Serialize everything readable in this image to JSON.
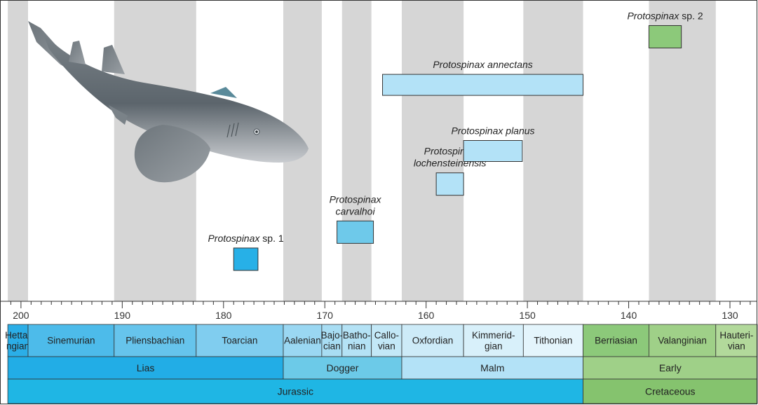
{
  "colors": {
    "band_gray": "#d6d6d6",
    "frame": "#333333",
    "jurassic": "#1fb6e4",
    "lias": "#22ade6",
    "dogger": "#6ccae8",
    "malm": "#b3e2f7",
    "cretaceous": "#85c36e",
    "early": "#9fd088",
    "sp1_fill": "#27b0e7",
    "carvalhoi_fill": "#6ec9ea",
    "malm_taxa_fill": "#b3e2f7",
    "sp2_fill": "#8cc97a",
    "shark": "icon: guitarfish-like shark (Protospinax) silhouette"
  },
  "chart_data": {
    "type": "range-chart",
    "x_axis": {
      "min": 202.0,
      "max": 127.3,
      "reversed": true,
      "unit": "Ma",
      "ticks": [
        200,
        190,
        180,
        170,
        160,
        150,
        140,
        130
      ]
    },
    "ages": [
      {
        "name": "Hetta-\nngian",
        "start": 201.3,
        "end": 199.3,
        "shade": true,
        "fill": "#2baee7"
      },
      {
        "name": "Sinemurian",
        "start": 199.3,
        "end": 190.8,
        "shade": false,
        "fill": "#4dbbea"
      },
      {
        "name": "Pliensbachian",
        "start": 190.8,
        "end": 182.7,
        "shade": true,
        "fill": "#66c4ec"
      },
      {
        "name": "Toarcian",
        "start": 182.7,
        "end": 174.1,
        "shade": false,
        "fill": "#80cdef"
      },
      {
        "name": "Aalenian",
        "start": 174.1,
        "end": 170.3,
        "shade": true,
        "fill": "#9ad7f2"
      },
      {
        "name": "Bajo-\ncian",
        "start": 170.3,
        "end": 168.3,
        "shade": false,
        "fill": "#a8ddf3"
      },
      {
        "name": "Batho-\nnian",
        "start": 168.3,
        "end": 165.4,
        "shade": true,
        "fill": "#b4e2f5"
      },
      {
        "name": "Callo-\nvian",
        "start": 165.4,
        "end": 162.4,
        "shade": false,
        "fill": "#c3e8f7"
      },
      {
        "name": "Oxfordian",
        "start": 162.4,
        "end": 156.3,
        "shade": true,
        "fill": "#cdebf8"
      },
      {
        "name": "Kimmerid-\ngian",
        "start": 156.3,
        "end": 150.4,
        "shade": false,
        "fill": "#d8f0fa"
      },
      {
        "name": "Tithonian",
        "start": 150.4,
        "end": 144.5,
        "shade": true,
        "fill": "#e4f5fc"
      },
      {
        "name": "Berriasian",
        "start": 144.5,
        "end": 138.0,
        "shade": false,
        "fill": "#8cc97a"
      },
      {
        "name": "Valanginian",
        "start": 138.0,
        "end": 131.4,
        "shade": true,
        "fill": "#9fd088"
      },
      {
        "name": "Hauteri-\nvian",
        "start": 131.4,
        "end": 127.3,
        "shade": false,
        "fill": "#b2d99b"
      }
    ],
    "epochs": [
      {
        "name": "Lias",
        "start": 201.3,
        "end": 174.1,
        "fill": "#22ade6"
      },
      {
        "name": "Dogger",
        "start": 174.1,
        "end": 162.4,
        "fill": "#6ccae8"
      },
      {
        "name": "Malm",
        "start": 162.4,
        "end": 144.5,
        "fill": "#b3e2f7"
      },
      {
        "name": "Early",
        "start": 144.5,
        "end": 127.3,
        "fill": "#9fd088"
      }
    ],
    "periods": [
      {
        "name": "Jurassic",
        "start": 201.3,
        "end": 144.5,
        "fill": "#1fb6e4"
      },
      {
        "name": "Cretaceous",
        "start": 144.5,
        "end": 127.3,
        "fill": "#85c36e"
      }
    ],
    "taxa": [
      {
        "genus": "Protospinax",
        "species": "sp. 1",
        "species_italic": false,
        "start": 179.0,
        "end": 176.6,
        "level": 0.14,
        "fill": "#27b0e7"
      },
      {
        "genus": "Protospinax",
        "species": "carvalhoi",
        "species_italic": true,
        "start": 168.8,
        "end": 165.2,
        "level": 0.23,
        "fill": "#6ec9ea",
        "two_lines": true
      },
      {
        "genus": "Protospinax",
        "species": "lochensteinensis",
        "species_italic": true,
        "start": 159.0,
        "end": 156.3,
        "level": 0.39,
        "fill": "#b3e2f7",
        "two_lines": true
      },
      {
        "genus": "Protospinax",
        "species": "planus",
        "species_italic": true,
        "start": 156.3,
        "end": 150.5,
        "level": 0.5,
        "fill": "#b3e2f7"
      },
      {
        "genus": "Protospinax",
        "species": "annectans",
        "species_italic": true,
        "start": 164.3,
        "end": 144.5,
        "level": 0.72,
        "fill": "#b3e2f7"
      },
      {
        "genus": "Protospinax",
        "species": "sp. 2",
        "species_italic": false,
        "start": 138.0,
        "end": 134.8,
        "level": 0.88,
        "fill": "#8cc97a"
      }
    ]
  }
}
